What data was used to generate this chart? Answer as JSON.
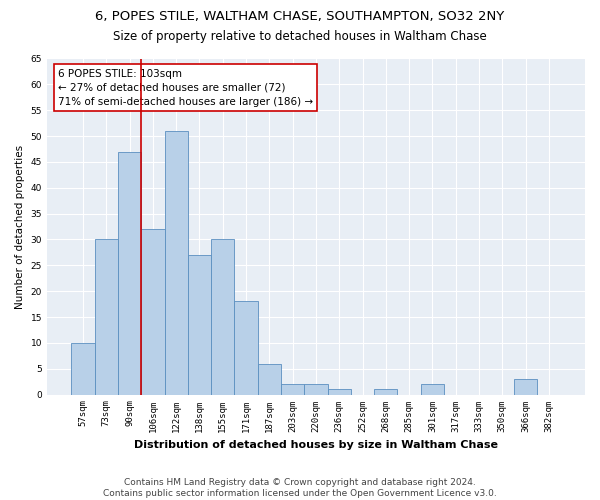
{
  "title1": "6, POPES STILE, WALTHAM CHASE, SOUTHAMPTON, SO32 2NY",
  "title2": "Size of property relative to detached houses in Waltham Chase",
  "xlabel": "Distribution of detached houses by size in Waltham Chase",
  "ylabel": "Number of detached properties",
  "categories": [
    "57sqm",
    "73sqm",
    "90sqm",
    "106sqm",
    "122sqm",
    "138sqm",
    "155sqm",
    "171sqm",
    "187sqm",
    "203sqm",
    "220sqm",
    "236sqm",
    "252sqm",
    "268sqm",
    "285sqm",
    "301sqm",
    "317sqm",
    "333sqm",
    "350sqm",
    "366sqm",
    "382sqm"
  ],
  "values": [
    10,
    30,
    47,
    32,
    51,
    27,
    30,
    18,
    6,
    2,
    2,
    1,
    0,
    1,
    0,
    2,
    0,
    0,
    0,
    3,
    0
  ],
  "bar_color": "#b8d0e8",
  "bar_edge_color": "#5a8fc0",
  "vline_x_idx": 2.5,
  "vline_color": "#cc0000",
  "annotation_text": "6 POPES STILE: 103sqm\n← 27% of detached houses are smaller (72)\n71% of semi-detached houses are larger (186) →",
  "annotation_box_color": "white",
  "annotation_box_edge_color": "#cc0000",
  "ylim": [
    0,
    65
  ],
  "yticks": [
    0,
    5,
    10,
    15,
    20,
    25,
    30,
    35,
    40,
    45,
    50,
    55,
    60,
    65
  ],
  "background_color": "#e8eef5",
  "footer_text": "Contains HM Land Registry data © Crown copyright and database right 2024.\nContains public sector information licensed under the Open Government Licence v3.0.",
  "title1_fontsize": 9.5,
  "title2_fontsize": 8.5,
  "xlabel_fontsize": 8,
  "ylabel_fontsize": 7.5,
  "annotation_fontsize": 7.5,
  "footer_fontsize": 6.5,
  "tick_fontsize": 6.5
}
